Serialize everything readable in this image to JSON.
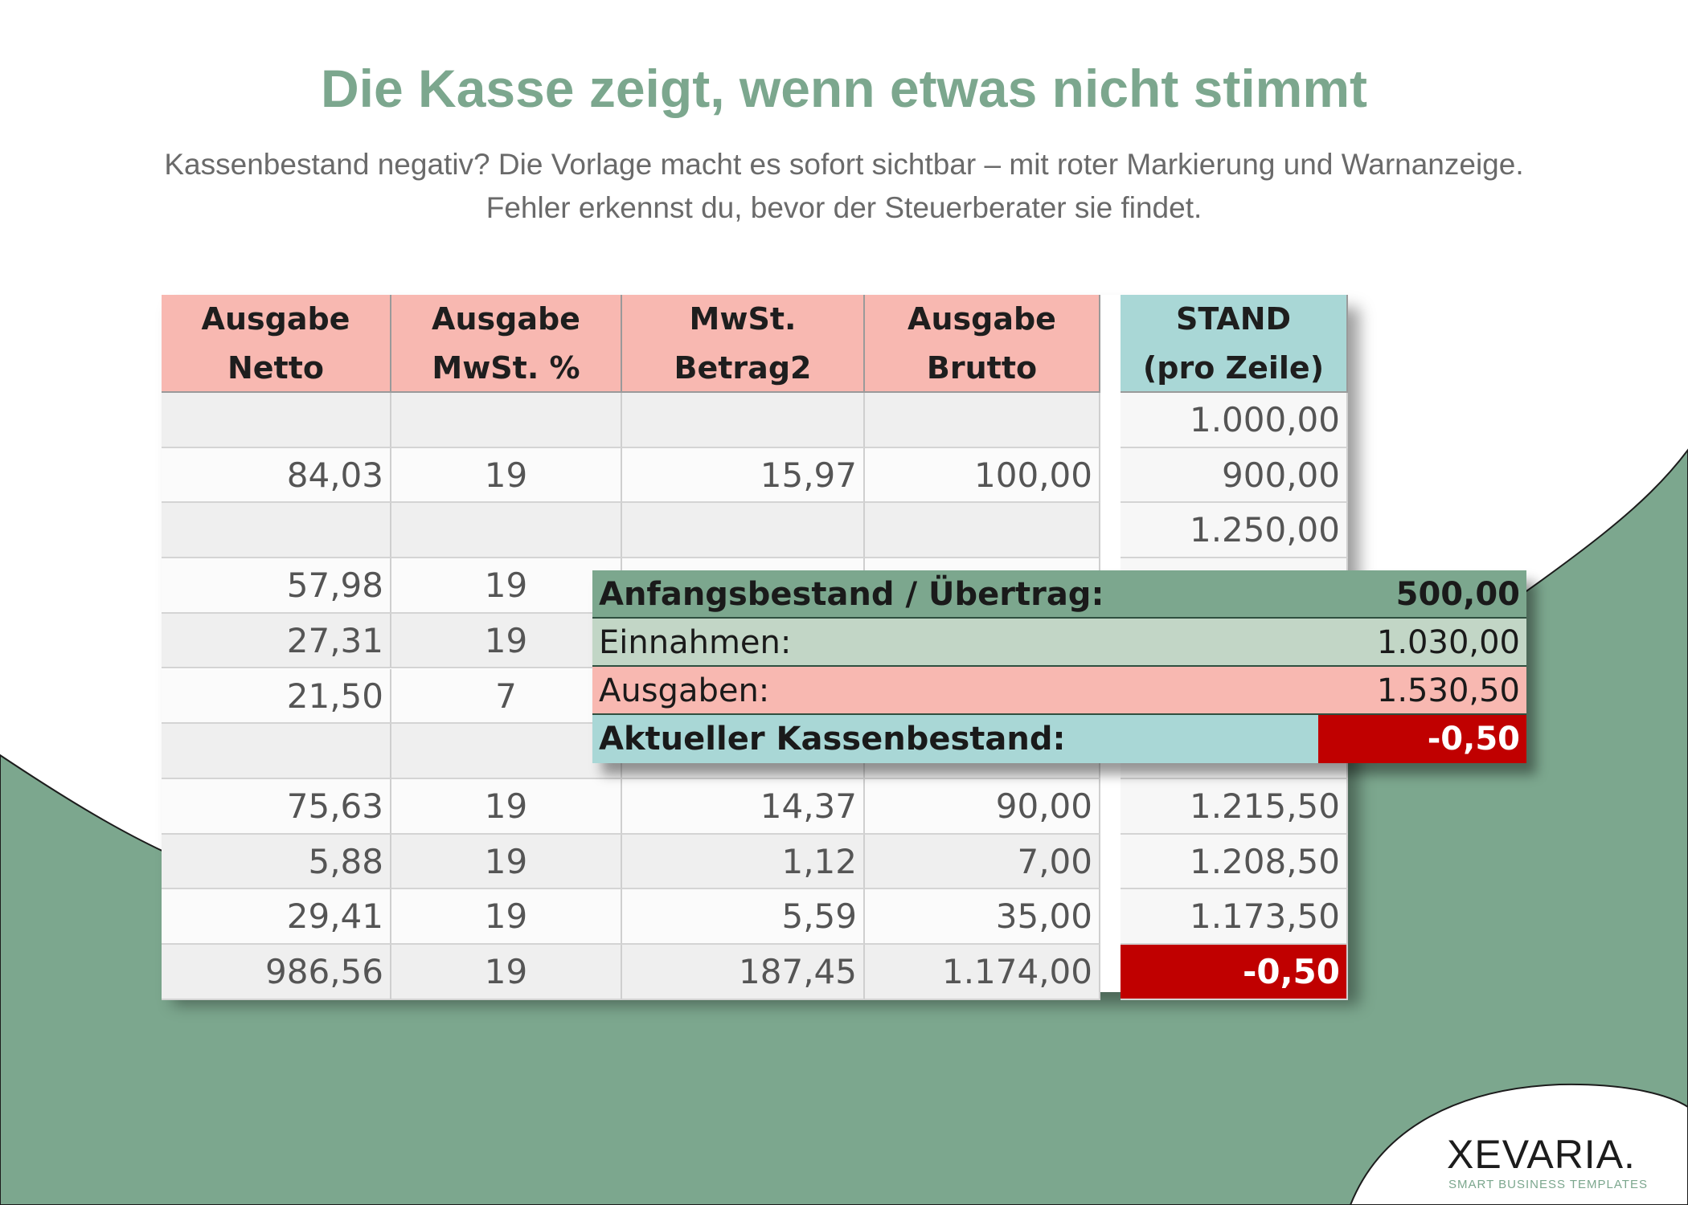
{
  "heading": "Die Kasse zeigt, wenn etwas nicht stimmt",
  "subtitle_line1": "Kassenbestand negativ? Die Vorlage macht es sofort sichtbar – mit roter Markierung und Warnanzeige.",
  "subtitle_line2": "Fehler erkennst du, bevor der Steuerberater sie findet.",
  "colors": {
    "accent_green": "#7ca78e",
    "header_pink": "#f8b8b1",
    "header_teal": "#a9d7d6",
    "warning_red": "#c00000"
  },
  "table": {
    "headers": [
      {
        "line1": "Ausgabe",
        "line2": "Netto"
      },
      {
        "line1": "Ausgabe",
        "line2": "MwSt. %"
      },
      {
        "line1": "MwSt.",
        "line2": "Betrag2"
      },
      {
        "line1": "Ausgabe",
        "line2": "Brutto"
      },
      {
        "line1": "STAND",
        "line2": "(pro Zeile)"
      }
    ],
    "rows": [
      {
        "netto": "",
        "pct": "",
        "mwst": "",
        "brutto": "",
        "stand": "1.000,00"
      },
      {
        "netto": "84,03",
        "pct": "19",
        "mwst": "15,97",
        "brutto": "100,00",
        "stand": "900,00"
      },
      {
        "netto": "",
        "pct": "",
        "mwst": "",
        "brutto": "",
        "stand": "1.250,00"
      },
      {
        "netto": "57,98",
        "pct": "19",
        "mwst": "",
        "brutto": "",
        "stand": ""
      },
      {
        "netto": "27,31",
        "pct": "19",
        "mwst": "",
        "brutto": "",
        "stand": ""
      },
      {
        "netto": "21,50",
        "pct": "7",
        "mwst": "",
        "brutto": "",
        "stand": ""
      },
      {
        "netto": "",
        "pct": "",
        "mwst": "",
        "brutto": "",
        "stand": ""
      },
      {
        "netto": "75,63",
        "pct": "19",
        "mwst": "14,37",
        "brutto": "90,00",
        "stand": "1.215,50"
      },
      {
        "netto": "5,88",
        "pct": "19",
        "mwst": "1,12",
        "brutto": "7,00",
        "stand": "1.208,50"
      },
      {
        "netto": "29,41",
        "pct": "19",
        "mwst": "5,59",
        "brutto": "35,00",
        "stand": "1.173,50"
      },
      {
        "netto": "986,56",
        "pct": "19",
        "mwst": "187,45",
        "brutto": "1.174,00",
        "stand": "-0,50",
        "negative": true
      }
    ]
  },
  "summary": {
    "anfang_label": "Anfangsbestand / Übertrag:",
    "anfang_value": "500,00",
    "einnahmen_label": "Einnahmen:",
    "einnahmen_value": "1.030,00",
    "ausgaben_label": "Ausgaben:",
    "ausgaben_value": "1.530,50",
    "kasse_label": "Aktueller Kassenbestand:",
    "kasse_value": "-0,50"
  },
  "brand": {
    "name": "XEVARIA.",
    "tagline": "SMART BUSINESS TEMPLATES"
  }
}
